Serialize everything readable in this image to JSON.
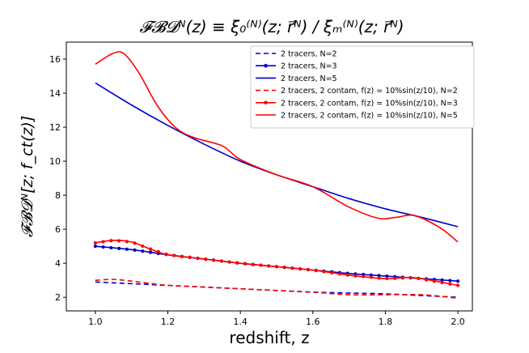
{
  "chart_data": {
    "type": "line",
    "title": "𝓕𝓑𝓓ᴺ(z) ≡ ξ₀⁽ᴺ⁾(z; r⃗ᴺ) / ξₘ⁽ᴺ⁾(z; r⃗ᴺ)",
    "xlabel": "redshift, z",
    "ylabel": "𝓕𝓑𝓓ᴺ[z; f_ct(z)]",
    "xlim": [
      0.92,
      2.04
    ],
    "ylim": [
      1.2,
      17.0
    ],
    "xticks": [
      1.0,
      1.2,
      1.4,
      1.6,
      1.8,
      2.0
    ],
    "xtick_labels": [
      "1.0",
      "1.2",
      "1.4",
      "1.6",
      "1.8",
      "2.0"
    ],
    "yticks": [
      2,
      4,
      6,
      8,
      10,
      12,
      14,
      16
    ],
    "ytick_labels": [
      "2",
      "4",
      "6",
      "8",
      "10",
      "12",
      "14",
      "16"
    ],
    "grid": false,
    "legend_position": "top-right",
    "series": [
      {
        "name": "2 tracers, N=2",
        "color": "#0000cc",
        "style": "dashed",
        "marker": "none",
        "x": [
          1.0,
          1.1,
          1.2,
          1.3,
          1.4,
          1.5,
          1.6,
          1.7,
          1.8,
          1.9,
          2.0
        ],
        "y": [
          2.9,
          2.8,
          2.7,
          2.6,
          2.5,
          2.4,
          2.3,
          2.25,
          2.2,
          2.1,
          2.0
        ]
      },
      {
        "name": "2 tracers, N=3",
        "color": "#0000cc",
        "style": "solid",
        "marker": "dot",
        "x": [
          1.0,
          1.1,
          1.2,
          1.3,
          1.4,
          1.5,
          1.6,
          1.7,
          1.8,
          1.9,
          2.0
        ],
        "y": [
          5.0,
          4.8,
          4.5,
          4.25,
          4.0,
          3.8,
          3.6,
          3.4,
          3.25,
          3.1,
          2.95
        ]
      },
      {
        "name": "2 tracers, N=5",
        "color": "#0000cc",
        "style": "solid",
        "marker": "none",
        "x": [
          1.0,
          1.1,
          1.2,
          1.3,
          1.4,
          1.5,
          1.6,
          1.7,
          1.8,
          1.9,
          2.0
        ],
        "y": [
          14.6,
          13.3,
          12.1,
          11.0,
          10.0,
          9.2,
          8.5,
          7.8,
          7.2,
          6.7,
          6.15
        ]
      },
      {
        "name": "2 tracers, 2 contam, f(z) = 10%sin(z/10), N=2",
        "color": "#ff0000",
        "style": "dashed",
        "marker": "none",
        "x": [
          1.0,
          1.05,
          1.1,
          1.2,
          1.3,
          1.4,
          1.5,
          1.6,
          1.7,
          1.8,
          1.9,
          2.0
        ],
        "y": [
          3.0,
          3.05,
          2.95,
          2.7,
          2.6,
          2.5,
          2.4,
          2.3,
          2.15,
          2.15,
          2.15,
          1.95
        ]
      },
      {
        "name": "2 tracers, 2 contam, f(z) = 10%sin(z/10), N=3",
        "color": "#ff0000",
        "style": "solid",
        "marker": "dot",
        "x": [
          1.0,
          1.05,
          1.1,
          1.15,
          1.2,
          1.3,
          1.4,
          1.5,
          1.6,
          1.7,
          1.8,
          1.88,
          2.0
        ],
        "y": [
          5.2,
          5.35,
          5.25,
          4.85,
          4.5,
          4.25,
          4.0,
          3.8,
          3.6,
          3.3,
          3.1,
          3.15,
          2.7
        ]
      },
      {
        "name": "2 tracers, 2 contam, f(z) = 10%sin(z/10), N=5",
        "color": "#ff0000",
        "style": "solid",
        "marker": "none",
        "x": [
          1.0,
          1.05,
          1.08,
          1.12,
          1.17,
          1.22,
          1.27,
          1.35,
          1.4,
          1.5,
          1.6,
          1.7,
          1.78,
          1.83,
          1.88,
          1.95,
          2.0
        ],
        "y": [
          15.7,
          16.35,
          16.3,
          15.2,
          13.3,
          12.0,
          11.4,
          10.9,
          10.1,
          9.2,
          8.5,
          7.3,
          6.65,
          6.7,
          6.8,
          6.1,
          5.25
        ]
      }
    ]
  }
}
